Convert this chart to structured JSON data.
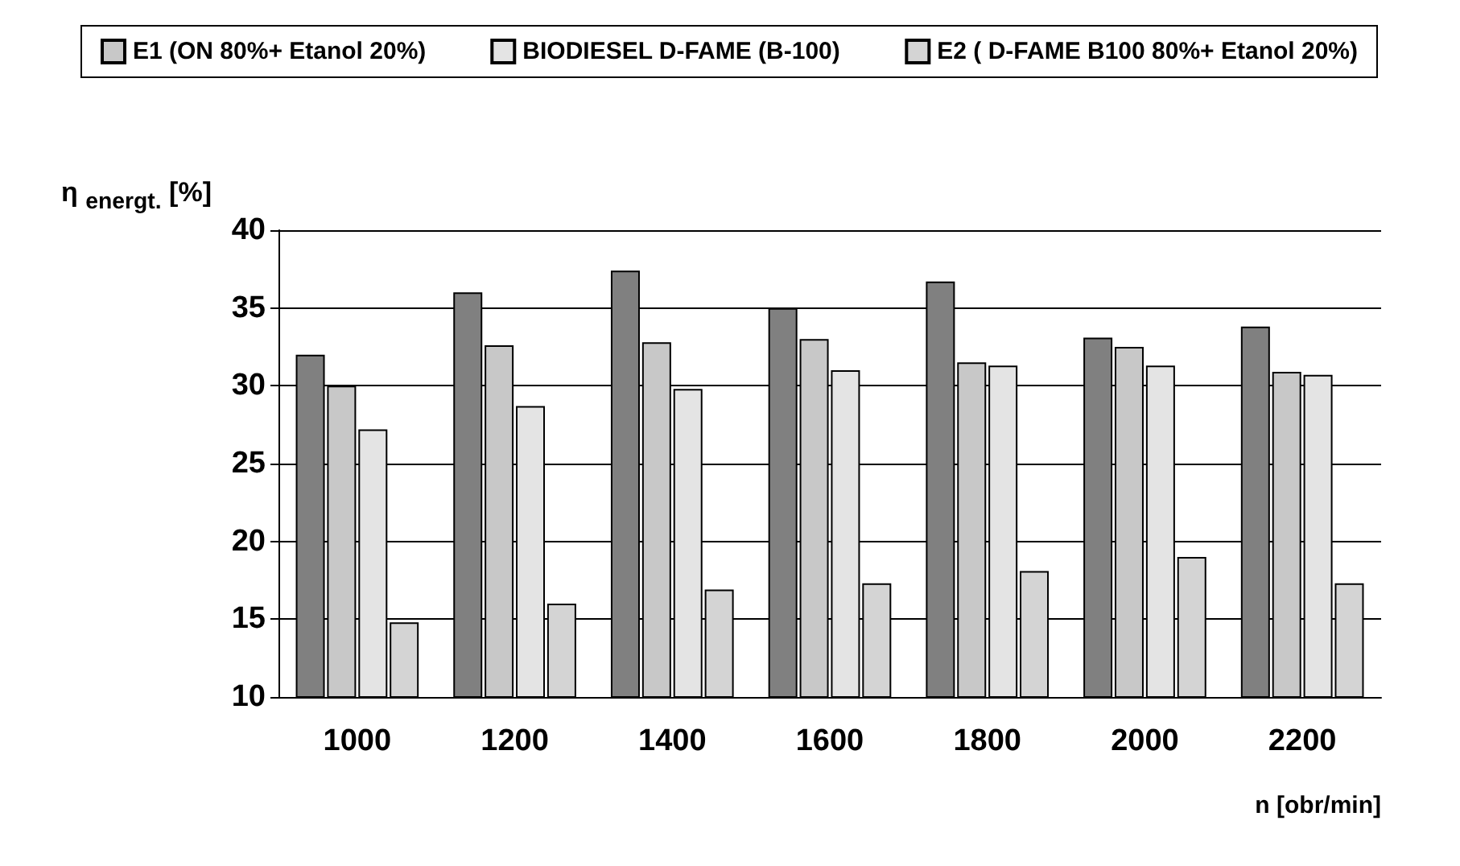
{
  "chart_data": {
    "type": "bar",
    "ylabel": "η $_{energt.}$ [%]",
    "xlabel": "n [obr/min]",
    "categories": [
      "1000",
      "1200",
      "1400",
      "1600",
      "1800",
      "2000",
      "2200"
    ],
    "series": [
      {
        "color": "#808080",
        "values": [
          32,
          36,
          37.4,
          35,
          36.7,
          33.1,
          33.8
        ]
      },
      {
        "name": "E1 (ON 80%+ Etanol 20%)",
        "color": "#c8c8c8",
        "values": [
          30,
          32.6,
          32.8,
          33,
          31.5,
          32.5,
          30.9
        ]
      },
      {
        "name": "BIODIESEL D-FAME (B-100)",
        "color": "#e4e4e4",
        "values": [
          27.2,
          28.7,
          29.8,
          31,
          31.3,
          31.3,
          30.7
        ]
      },
      {
        "name": "E2 ( D-FAME B100 80%+ Etanol 20%)",
        "color": "#d4d4d4",
        "values": [
          14.8,
          16,
          16.9,
          17.3,
          18.1,
          19,
          17.3
        ]
      }
    ],
    "ylim": [
      10,
      40
    ],
    "yticks": [
      10,
      15,
      20,
      25,
      30,
      35,
      40
    ],
    "grid": "y",
    "legend": "top"
  }
}
